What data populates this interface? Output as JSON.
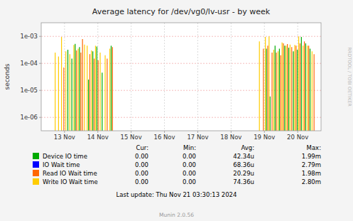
{
  "chart_data": {
    "type": "bar",
    "title": "Average latency for /dev/vg0/lv-usr  -  by week",
    "y_label": "seconds",
    "log": "y",
    "grid": true,
    "legend": "bottom",
    "xlim": [
      0.3,
      8.7
    ],
    "xticks": [
      {
        "value": 1,
        "label": "13 Nov"
      },
      {
        "value": 2,
        "label": "14 Nov"
      },
      {
        "value": 3,
        "label": "15 Nov"
      },
      {
        "value": 4,
        "label": "16 Nov"
      },
      {
        "value": 5,
        "label": "17 Nov"
      },
      {
        "value": 6,
        "label": "18 Nov"
      },
      {
        "value": 7,
        "label": "19 Nov"
      },
      {
        "value": 8,
        "label": "20 Nov"
      }
    ],
    "ylim": [
      3.2e-07,
      0.0032
    ],
    "yticks": [
      {
        "value": 1e-06,
        "label": "1e-06"
      },
      {
        "value": 1e-05,
        "label": "1e-05"
      },
      {
        "value": 0.0001,
        "label": "1e-04"
      },
      {
        "value": 0.001,
        "label": "1e-03"
      }
    ],
    "stats_columns": [
      "Cur:",
      "Min:",
      "Avg:",
      "Max:"
    ],
    "series": [
      {
        "name": "Device IO time",
        "color": "#00aa00",
        "stats": [
          "0.00",
          "0.00",
          "42.34u",
          "1.99m"
        ],
        "x": [
          1.1,
          1.22,
          1.32,
          1.45,
          1.72,
          1.85,
          1.97,
          2.13,
          2.4,
          7.06,
          7.17,
          7.32,
          7.45,
          7.61,
          7.73,
          7.87,
          7.99,
          8.11,
          8.24,
          8.37
        ],
        "values": [
          0.00032,
          0.00015,
          0.00053,
          0.0004,
          2.5e-05,
          0.00028,
          0.00042,
          4.5e-05,
          0.00045,
          0.00035,
          6e-06,
          0.00045,
          0.00035,
          0.00045,
          0.00038,
          0.00028,
          0.00032,
          0.00095,
          0.00055,
          0.00035
        ]
      },
      {
        "name": "IO Wait time",
        "color": "#0000ff",
        "stats": [
          "0.00",
          "0.00",
          "68.36u",
          "2.79m"
        ],
        "x": [],
        "values": []
      },
      {
        "name": "Read IO Wait time",
        "color": "#ff6600",
        "stats": [
          "0.00",
          "0.00",
          "20.29u",
          "1.98m"
        ],
        "x": [
          0.98,
          1.36,
          1.49,
          1.54,
          1.76,
          1.89,
          2.01,
          2.28,
          2.44,
          6.97,
          7.1,
          7.23,
          7.36,
          7.49,
          7.57,
          7.69,
          7.82,
          7.95,
          8.07,
          8.2,
          8.33,
          8.49
        ],
        "values": [
          7e-05,
          0.0003,
          0.00025,
          0.0008,
          0.00022,
          0.00015,
          0.00013,
          0.00015,
          0.0004,
          0.00035,
          0.00045,
          0.00025,
          0.00025,
          0.0002,
          0.00055,
          0.00052,
          0.0004,
          0.00045,
          0.00055,
          0.00065,
          0.00045,
          0.00022
        ]
      },
      {
        "name": "Write IO Wait time",
        "color": "#ffcc00",
        "stats": [
          "0.00",
          "0.00",
          "74.36u",
          "2.80m"
        ],
        "x": [
          0.72,
          0.82,
          0.91,
          1.04,
          1.16,
          1.28,
          1.41,
          1.6,
          1.68,
          1.81,
          1.93,
          2.07,
          2.22,
          2.36,
          6.85,
          7.03,
          7.14,
          7.28,
          7.41,
          7.53,
          7.65,
          7.77,
          7.91,
          8.03,
          8.16,
          8.29,
          8.43
        ],
        "values": [
          0.00025,
          0.00018,
          0.00095,
          0.00028,
          0.00022,
          0.00048,
          0.00035,
          0.0005,
          0.00045,
          0.0003,
          0.00045,
          0.00025,
          0.0002,
          0.00035,
          0.00065,
          0.00095,
          0.001,
          0.00032,
          0.00028,
          0.0006,
          0.00045,
          0.0005,
          0.00048,
          0.001,
          0.00045,
          0.00045,
          0.00028
        ]
      }
    ],
    "last_update": "Last update: Thu Nov 21 03:30:13 2024",
    "footer": "Munin 2.0.56",
    "watermark": "RRDTOOL / TOBI OETIKER"
  }
}
